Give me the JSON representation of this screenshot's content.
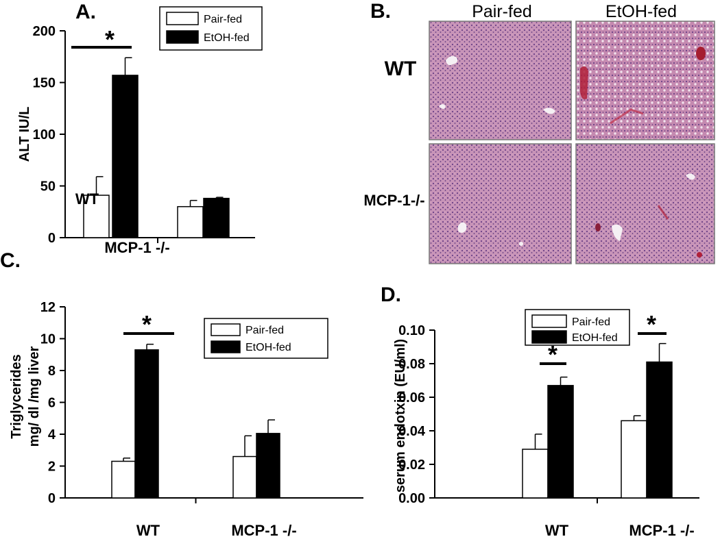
{
  "colors": {
    "pair_fed": "#ffffff",
    "etoh_fed": "#000000",
    "axis": "#000000"
  },
  "legend": {
    "pair_fed": "Pair-fed",
    "etoh_fed": "EtOH-fed"
  },
  "panel_B": {
    "letter": "B.",
    "columns": [
      "Pair-fed",
      "EtOH-fed"
    ],
    "rows": [
      "WT",
      "MCP-1-/-"
    ],
    "images": [
      "liver-histology-wt-pair-fed",
      "liver-histology-wt-etoh-fed",
      "liver-histology-mcp1ko-pair-fed",
      "liver-histology-mcp1ko-etoh-fed"
    ]
  },
  "chart_data": [
    {
      "panel": "A.",
      "type": "bar",
      "categories": [
        "WT",
        "MCP-1 -/-"
      ],
      "series": [
        {
          "name": "Pair-fed",
          "values": [
            41,
            30
          ],
          "errors": [
            18,
            6
          ]
        },
        {
          "name": "EtOH-fed",
          "values": [
            157,
            38
          ],
          "errors": [
            17,
            1
          ]
        }
      ],
      "ylabel": "ALT IU/L",
      "ylim": [
        0,
        200
      ],
      "yticks": [
        "0",
        "50",
        "100",
        "150",
        "200"
      ],
      "significance": [
        "*",
        ""
      ],
      "legend_position": "top",
      "grid": false
    },
    {
      "panel": "C.",
      "type": "bar",
      "categories": [
        "WT",
        "MCP-1 -/-"
      ],
      "series": [
        {
          "name": "Pair-fed",
          "values": [
            2.3,
            2.6
          ],
          "errors": [
            0.2,
            1.3
          ]
        },
        {
          "name": "EtOH-fed",
          "values": [
            9.3,
            4.05
          ],
          "errors": [
            0.35,
            0.85
          ]
        }
      ],
      "ylabel": [
        "Triglycerides",
        "mg/ dl /mg liver"
      ],
      "ylim": [
        0,
        12
      ],
      "yticks": [
        "0",
        "2",
        "4",
        "6",
        "8",
        "10",
        "12"
      ],
      "significance": [
        "*",
        ""
      ],
      "legend_position": "top-right",
      "grid": false
    },
    {
      "panel": "D.",
      "type": "bar",
      "categories": [
        "WT",
        "MCP-1 -/-"
      ],
      "series": [
        {
          "name": "Pair-fed",
          "values": [
            0.029,
            0.046
          ],
          "errors": [
            0.009,
            0.003
          ]
        },
        {
          "name": "EtOH-fed",
          "values": [
            0.067,
            0.081
          ],
          "errors": [
            0.005,
            0.011
          ]
        }
      ],
      "ylabel": "serum endotxin (EU/ml)",
      "ylim": [
        0,
        0.1
      ],
      "yticks": [
        "0.00",
        "0.02",
        "0.04",
        "0.06",
        "0.08",
        "0.10"
      ],
      "significance": [
        "*",
        "*"
      ],
      "legend_position": "top",
      "grid": false
    }
  ]
}
